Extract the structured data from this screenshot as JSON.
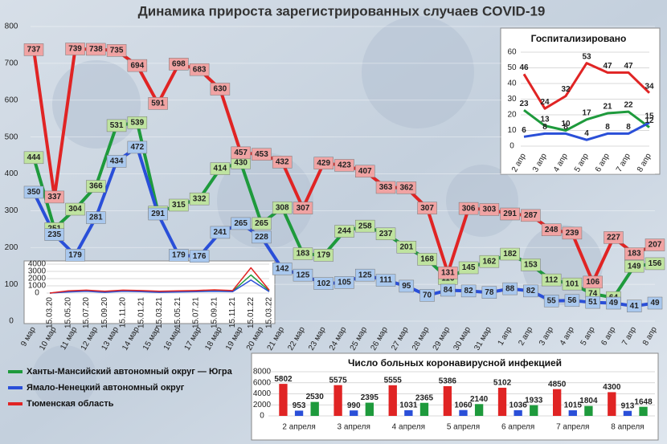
{
  "chart_data": [
    {
      "type": "line",
      "title": "Динамика прироста зарегистрированных случаев COVID-19",
      "categories": [
        "9 мар",
        "10 мар",
        "11 мар",
        "12 мар",
        "13 мар",
        "14 мар",
        "15 мар",
        "16 мар",
        "17 мар",
        "18 мар",
        "19 мар",
        "20 мар",
        "21 мар",
        "22 мар",
        "23 мар",
        "24 мар",
        "25 мар",
        "26 мар",
        "27 мар",
        "28 мар",
        "29 мар",
        "30 мар",
        "31 мар",
        "1 апр",
        "2 апр",
        "3 апр",
        "4 апр",
        "5 апр",
        "6 апр",
        "7 апр",
        "8 апр"
      ],
      "series": [
        {
          "name": "Ханты-Мансийский автономный округ — Югра",
          "color": "#1e9a3c",
          "values": [
            444,
            251,
            304,
            366,
            531,
            539,
            296,
            315,
            332,
            414,
            430,
            265,
            308,
            183,
            179,
            244,
            258,
            237,
            201,
            168,
            116,
            145,
            162,
            182,
            153,
            112,
            101,
            74,
            64,
            149,
            156
          ]
        },
        {
          "name": "Ямало-Ненецкий автономный округ",
          "color": "#2a4fd8",
          "values": [
            350,
            235,
            179,
            281,
            434,
            472,
            291,
            179,
            176,
            241,
            265,
            228,
            142,
            125,
            102,
            105,
            125,
            111,
            95,
            70,
            84,
            82,
            78,
            88,
            82,
            55,
            56,
            51,
            49,
            41,
            49
          ]
        },
        {
          "name": "Тюменская область",
          "color": "#e02424",
          "values": [
            737,
            337,
            739,
            738,
            735,
            694,
            591,
            698,
            683,
            630,
            457,
            453,
            432,
            307,
            429,
            423,
            407,
            363,
            362,
            307,
            131,
            306,
            303,
            291,
            287,
            248,
            239,
            106,
            227,
            183,
            207
          ]
        }
      ],
      "ylim": [
        0,
        800
      ],
      "yticks": [
        0,
        100,
        200,
        300,
        400,
        500,
        600,
        700,
        800
      ],
      "grid": true,
      "legend": "bottom-left"
    },
    {
      "type": "line",
      "title": "Госпитализировано",
      "categories": [
        "2 апр",
        "3 апр",
        "4 апр",
        "5 апр",
        "6 апр",
        "7 апр",
        "8 апр"
      ],
      "series": [
        {
          "color": "#1e9a3c",
          "values": [
            23,
            13,
            10,
            17,
            21,
            22,
            12
          ]
        },
        {
          "color": "#2a4fd8",
          "values": [
            6,
            8,
            8,
            4,
            8,
            8,
            15
          ]
        },
        {
          "color": "#e02424",
          "values": [
            46,
            24,
            32,
            53,
            47,
            47,
            34
          ]
        }
      ],
      "ylim": [
        0,
        60
      ],
      "yticks": [
        0,
        10,
        20,
        30,
        40,
        50,
        60
      ],
      "grid": true
    },
    {
      "type": "line",
      "categories": [
        "15.03.20",
        "15.05.20",
        "15.07.20",
        "15.09.20",
        "15.11.20",
        "15.01.21",
        "15.03.21",
        "15.05.21",
        "15.07.21",
        "15.09.21",
        "15.11.21",
        "15.01.22",
        "15.03.22"
      ],
      "series": [
        {
          "color": "#1e9a3c",
          "values": [
            0,
            200,
            300,
            150,
            300,
            250,
            150,
            200,
            250,
            300,
            250,
            2500,
            300
          ]
        },
        {
          "color": "#2a4fd8",
          "values": [
            0,
            150,
            250,
            100,
            250,
            200,
            100,
            150,
            200,
            250,
            200,
            1800,
            200
          ]
        },
        {
          "color": "#e02424",
          "values": [
            0,
            300,
            400,
            250,
            400,
            350,
            250,
            300,
            350,
            450,
            350,
            3500,
            400
          ]
        }
      ],
      "ylim": [
        0,
        4000
      ],
      "yticks": [
        0,
        1000,
        2000,
        3000,
        4000
      ],
      "grid": true
    },
    {
      "type": "bar",
      "title": "Число больных коронавирусной  инфекцией",
      "categories": [
        "2 апреля",
        "3 апреля",
        "4 апреля",
        "5 апреля",
        "6 апреля",
        "7 апреля",
        "8 апреля"
      ],
      "series": [
        {
          "color": "#e02424",
          "values": [
            5802,
            5575,
            5555,
            5386,
            5102,
            4850,
            4300
          ]
        },
        {
          "color": "#2a4fd8",
          "values": [
            953,
            990,
            1031,
            1060,
            1036,
            1015,
            913
          ]
        },
        {
          "color": "#1e9a3c",
          "values": [
            2530,
            2395,
            2365,
            2140,
            1933,
            1804,
            1648
          ]
        }
      ],
      "ylim": [
        0,
        8000
      ],
      "yticks": [
        0,
        2000,
        4000,
        6000,
        8000
      ],
      "grid": true
    }
  ]
}
